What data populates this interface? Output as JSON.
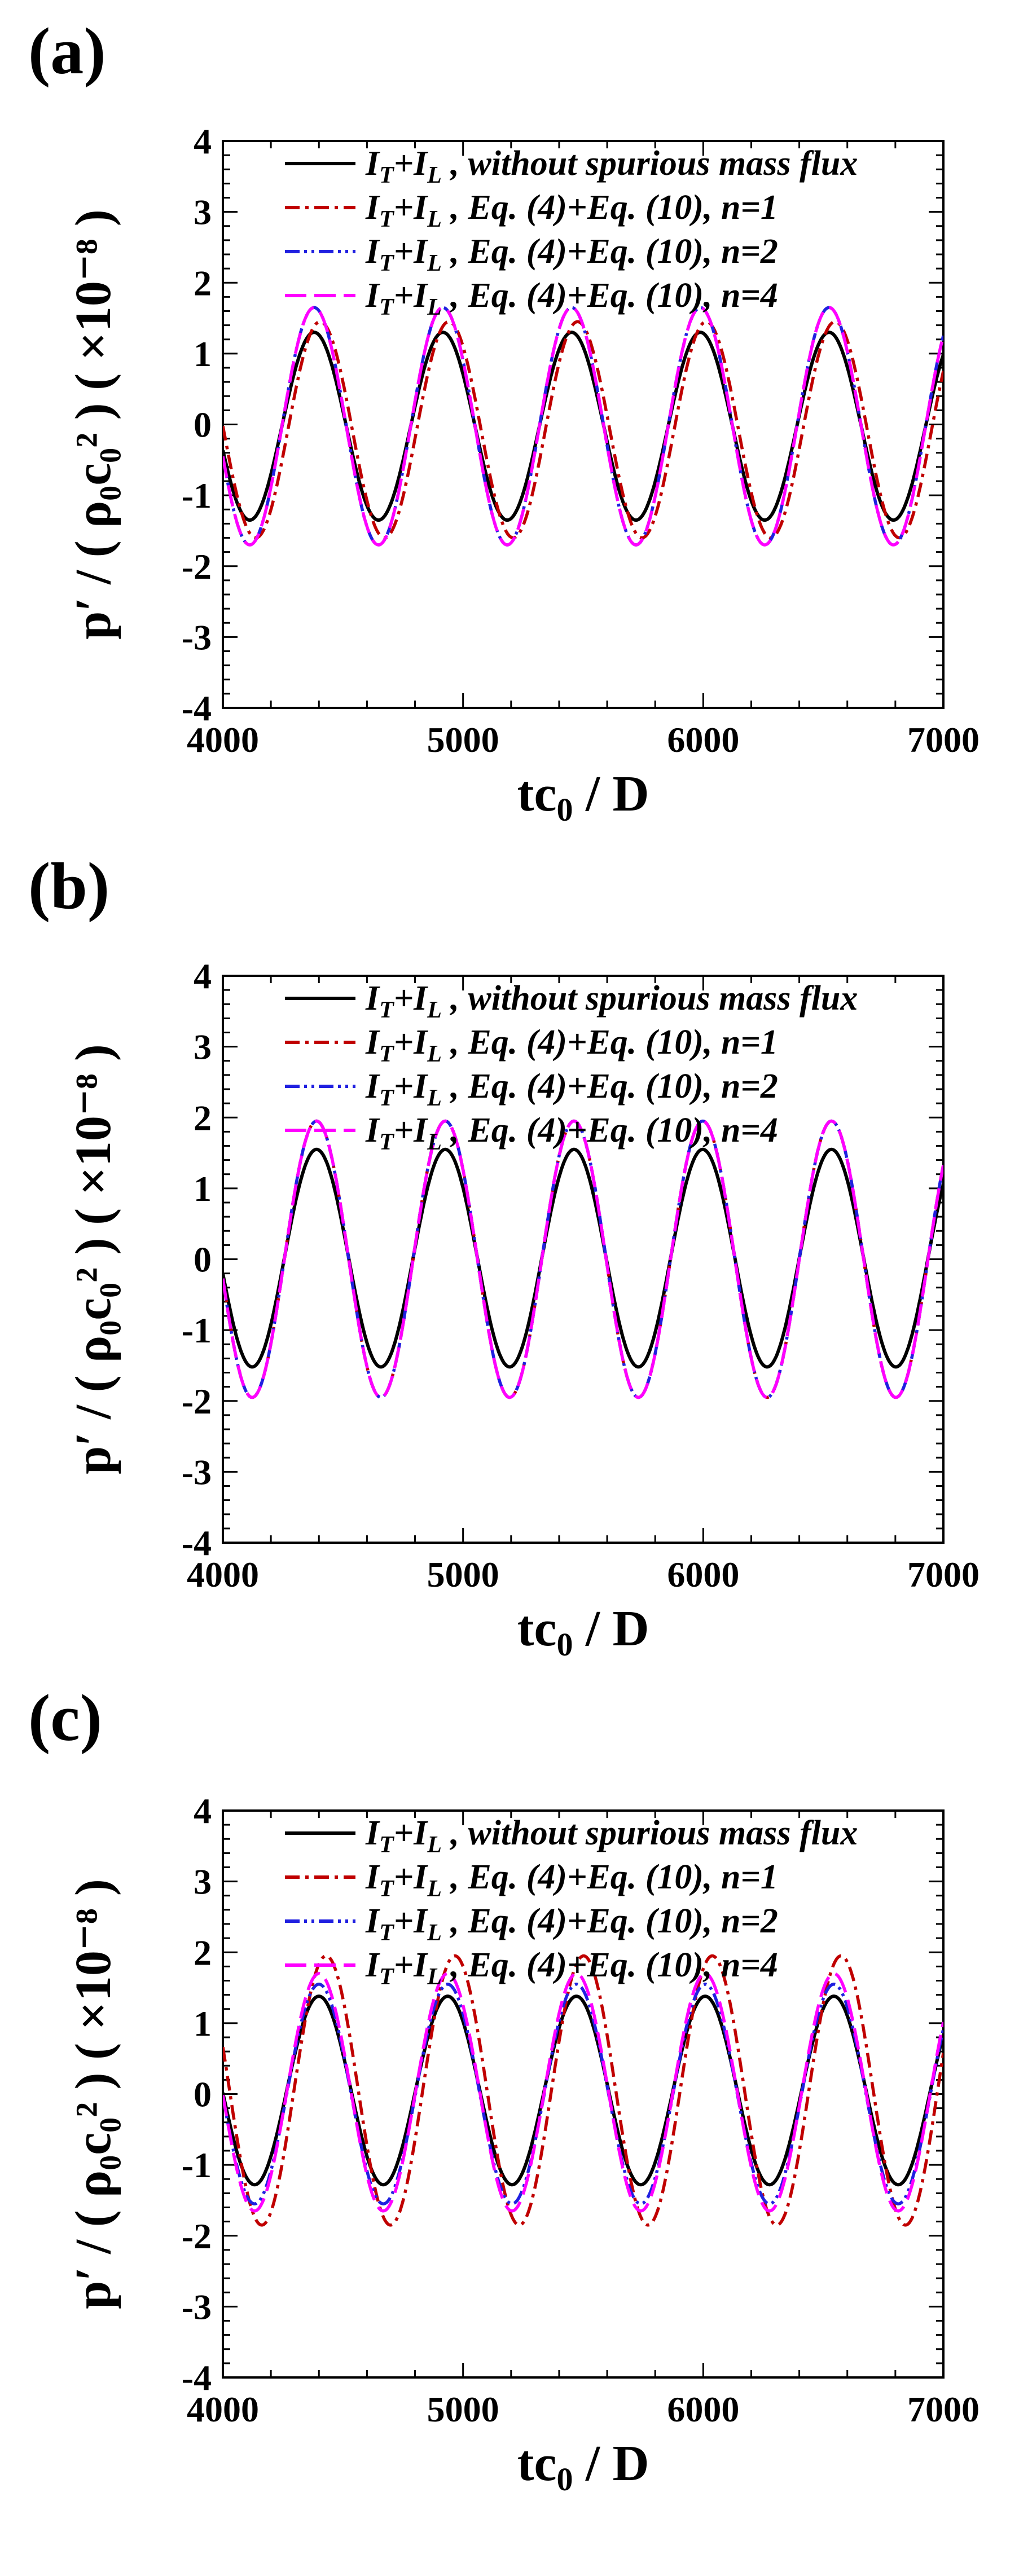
{
  "colors": {
    "series_1": "#000000",
    "series_2": "#c00000",
    "series_3": "#2020e0",
    "series_4": "#ff00ff"
  },
  "chart_data": [
    {
      "type": "line",
      "panel": "(a)",
      "xlabel_main": "tc",
      "xlabel_sub": "0",
      "xlabel_rest": " / D",
      "ylabel": "p′ / ( ρ₀c₀² ) ( ×10⁻⁸ )",
      "xlim": [
        4000,
        7000
      ],
      "ylim": [
        -4,
        4
      ],
      "xticks": [
        "4000",
        "5000",
        "6000",
        "7000"
      ],
      "yticks": [
        "-4",
        "-3",
        "-2",
        "-1",
        "0",
        "1",
        "2",
        "3",
        "4"
      ],
      "period": 536,
      "peak_t": 4380,
      "t_range": [
        4000,
        7000
      ],
      "series": [
        {
          "name": "IT+IL , without spurious mass flux",
          "legend_a": "I",
          "legend_a_sub": "T",
          "legend_b": "+I",
          "legend_b_sub": "L",
          "legend_rest": " , without spurious mass flux",
          "max": 1.3,
          "min": -1.35,
          "phase_shift": 0,
          "color": "#000000",
          "dash": "solid"
        },
        {
          "name": "IT+IL , Eq. (4)+Eq. (10), n=1",
          "legend_a": "I",
          "legend_a_sub": "T",
          "legend_b": "+I",
          "legend_b_sub": "L",
          "legend_rest": " , Eq. (4)+Eq. (10), n=1",
          "max": 1.45,
          "min": -1.6,
          "phase_shift": 25,
          "color": "#c00000",
          "dash": "dashdot"
        },
        {
          "name": "IT+IL , Eq. (4)+Eq. (10), n=2",
          "legend_a": "I",
          "legend_a_sub": "T",
          "legend_b": "+I",
          "legend_b_sub": "L",
          "legend_rest": " , Eq. (4)+Eq. (10), n=2",
          "max": 1.65,
          "min": -1.7,
          "phase_shift": 0,
          "color": "#2020e0",
          "dash": "dashdotdot"
        },
        {
          "name": "IT+IL , Eq. (4)+Eq. (10), n=4",
          "legend_a": "I",
          "legend_a_sub": "T",
          "legend_b": "+I",
          "legend_b_sub": "L",
          "legend_rest": " , Eq. (4)+Eq. (10), n=4",
          "max": 1.65,
          "min": -1.7,
          "phase_shift": 0,
          "color": "#ff00ff",
          "dash": "longdash"
        }
      ]
    },
    {
      "type": "line",
      "panel": "(b)",
      "xlabel_main": "tc",
      "xlabel_sub": "0",
      "xlabel_rest": " / D",
      "ylabel": "p′ / ( ρ₀c₀² ) ( ×10⁻⁸ )",
      "xlim": [
        4000,
        7000
      ],
      "ylim": [
        -4,
        4
      ],
      "xticks": [
        "4000",
        "5000",
        "6000",
        "7000"
      ],
      "yticks": [
        "-4",
        "-3",
        "-2",
        "-1",
        "0",
        "1",
        "2",
        "3",
        "4"
      ],
      "period": 536,
      "peak_t": 4390,
      "t_range": [
        4000,
        7000
      ],
      "series": [
        {
          "name": "IT+IL , without spurious mass flux",
          "legend_a": "I",
          "legend_a_sub": "T",
          "legend_b": "+I",
          "legend_b_sub": "L",
          "legend_rest": " , without spurious mass flux",
          "max": 1.55,
          "min": -1.52,
          "phase_shift": 0,
          "color": "#000000",
          "dash": "solid"
        },
        {
          "name": "IT+IL , Eq. (4)+Eq. (10), n=1",
          "legend_a": "I",
          "legend_a_sub": "T",
          "legend_b": "+I",
          "legend_b_sub": "L",
          "legend_rest": " , Eq. (4)+Eq. (10), n=1",
          "max": 1.95,
          "min": -1.95,
          "phase_shift": 0,
          "color": "#c00000",
          "dash": "dashdot"
        },
        {
          "name": "IT+IL , Eq. (4)+Eq. (10), n=2",
          "legend_a": "I",
          "legend_a_sub": "T",
          "legend_b": "+I",
          "legend_b_sub": "L",
          "legend_rest": " , Eq. (4)+Eq. (10), n=2",
          "max": 1.95,
          "min": -1.95,
          "phase_shift": 0,
          "color": "#2020e0",
          "dash": "dashdotdot"
        },
        {
          "name": "IT+IL , Eq. (4)+Eq. (10), n=4",
          "legend_a": "I",
          "legend_a_sub": "T",
          "legend_b": "+I",
          "legend_b_sub": "L",
          "legend_rest": " , Eq. (4)+Eq. (10), n=4",
          "max": 1.95,
          "min": -1.95,
          "phase_shift": 0,
          "color": "#ff00ff",
          "dash": "longdash"
        }
      ]
    },
    {
      "type": "line",
      "panel": "(c)",
      "xlabel_main": "tc",
      "xlabel_sub": "0",
      "xlabel_rest": " / D",
      "ylabel": "p′ / ( ρ₀c₀² ) ( ×10⁻⁸ )",
      "xlim": [
        4000,
        7000
      ],
      "ylim": [
        -4,
        4
      ],
      "xticks": [
        "4000",
        "5000",
        "6000",
        "7000"
      ],
      "yticks": [
        "-4",
        "-3",
        "-2",
        "-1",
        "0",
        "1",
        "2",
        "3",
        "4"
      ],
      "period": 536,
      "peak_t": 4400,
      "t_range": [
        4000,
        7000
      ],
      "series": [
        {
          "name": "IT+IL , without spurious mass flux",
          "legend_a": "I",
          "legend_a_sub": "T",
          "legend_b": "+I",
          "legend_b_sub": "L",
          "legend_rest": " , without spurious mass flux",
          "max": 1.38,
          "min": -1.28,
          "phase_shift": 0,
          "color": "#000000",
          "dash": "solid"
        },
        {
          "name": "IT+IL , Eq. (4)+Eq. (10), n=1",
          "legend_a": "I",
          "legend_a_sub": "T",
          "legend_b": "+I",
          "legend_b_sub": "L",
          "legend_rest": " , Eq. (4)+Eq. (10), n=1",
          "max": 1.95,
          "min": -1.85,
          "phase_shift": 30,
          "color": "#c00000",
          "dash": "dashdot"
        },
        {
          "name": "IT+IL , Eq. (4)+Eq. (10), n=2",
          "legend_a": "I",
          "legend_a_sub": "T",
          "legend_b": "+I",
          "legend_b_sub": "L",
          "legend_rest": " , Eq. (4)+Eq. (10), n=2",
          "max": 1.55,
          "min": -1.55,
          "phase_shift": 0,
          "color": "#2020e0",
          "dash": "dashdotdot"
        },
        {
          "name": "IT+IL , Eq. (4)+Eq. (10), n=4",
          "legend_a": "I",
          "legend_a_sub": "T",
          "legend_b": "+I",
          "legend_b_sub": "L",
          "legend_rest": " , Eq. (4)+Eq. (10), n=4",
          "max": 1.7,
          "min": -1.65,
          "phase_shift": 0,
          "color": "#ff00ff",
          "dash": "longdash"
        }
      ]
    }
  ]
}
